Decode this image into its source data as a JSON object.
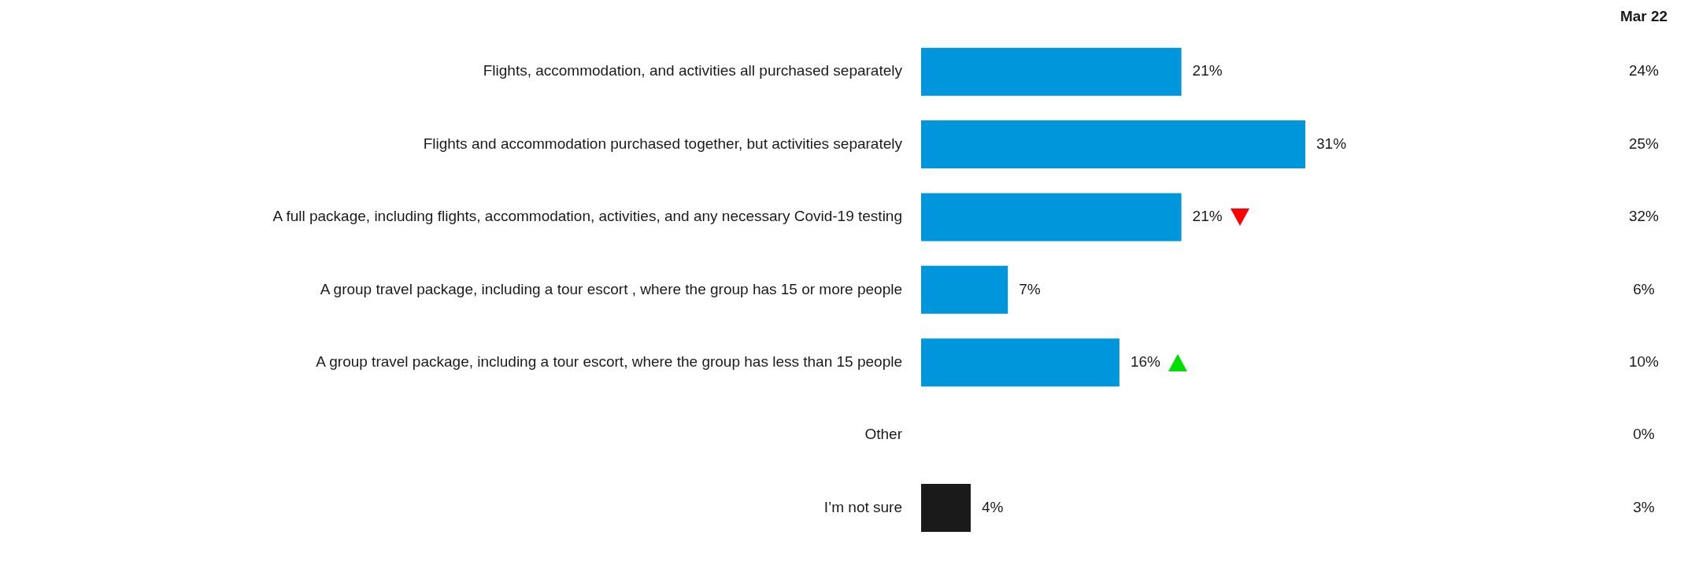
{
  "chart_data": {
    "type": "bar",
    "orientation": "horizontal",
    "categories": [
      "Flights, accommodation, and activities all purchased separately",
      "Flights and accommodation purchased together, but activities separately",
      "A full package, including flights, accommodation, activities, and any necessary Covid-19 testing",
      "A group travel package, including a tour escort , where the group has 15 or more people",
      "A group travel package, including a tour escort, where the group has less than 15 people",
      "Other",
      "I’m not sure"
    ],
    "values": [
      21,
      31,
      21,
      7,
      16,
      0,
      4
    ],
    "colors": [
      "#0096dc",
      "#0096dc",
      "#0096dc",
      "#0096dc",
      "#0096dc",
      "#0096dc",
      "#1a1a1a"
    ],
    "value_labels": [
      "21%",
      "31%",
      "21%",
      "7%",
      "16%",
      null,
      "4%"
    ],
    "tick_labels": "y",
    "legend": false,
    "annotations": [
      "Mar 22",
      "24%",
      "25%",
      "32%",
      "6%",
      "10%",
      "0%",
      "3%"
    ]
  }
}
